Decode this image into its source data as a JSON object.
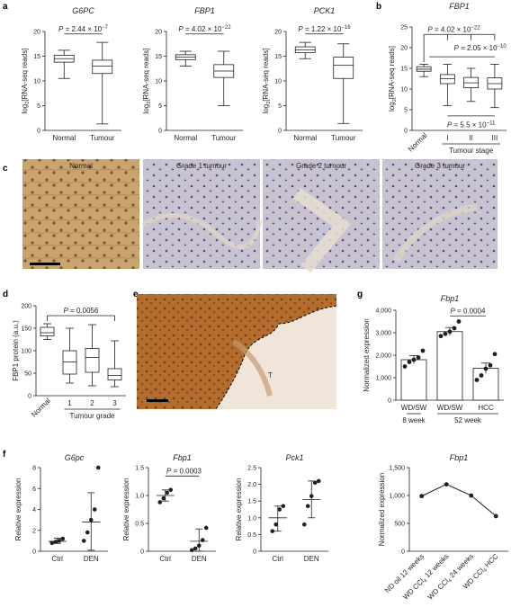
{
  "panel_labels": [
    "a",
    "b",
    "c",
    "d",
    "e",
    "f",
    "g"
  ],
  "panel_c_titles": [
    "Normal",
    "Grade 1 tumour",
    "Grade 2 tumour",
    "Grade 3 tumour"
  ],
  "panel_e_label": "T",
  "chart_data": [
    {
      "id": "a1",
      "type": "box",
      "title": "G6PC",
      "ylabel": "log2[RNA-seq reads]",
      "categories": [
        "Normal",
        "Tumour"
      ],
      "ylim": [
        0,
        20
      ],
      "yticks": [
        0,
        5,
        10,
        15,
        20
      ],
      "boxes": [
        {
          "min": 10.5,
          "q1": 13.8,
          "median": 14.5,
          "q3": 15.2,
          "max": 16.2
        },
        {
          "min": 1.3,
          "q1": 11.5,
          "median": 13.0,
          "q3": 14.2,
          "max": 17.8
        }
      ],
      "annotations": [
        {
          "text": "P = 2.44 × 10^−7"
        }
      ]
    },
    {
      "id": "a2",
      "type": "box",
      "title": "FBP1",
      "ylabel": "log2[RNA-seq reads]",
      "categories": [
        "Normal",
        "Tumour"
      ],
      "ylim": [
        0,
        20
      ],
      "yticks": [
        0,
        5,
        10,
        15,
        20
      ],
      "boxes": [
        {
          "min": 13.0,
          "q1": 14.3,
          "median": 14.8,
          "q3": 15.3,
          "max": 16.0
        },
        {
          "min": 5.0,
          "q1": 10.7,
          "median": 12.0,
          "q3": 13.3,
          "max": 16.0
        }
      ],
      "annotations": [
        {
          "text": "P = 4.02 × 10^−22"
        }
      ]
    },
    {
      "id": "a3",
      "type": "box",
      "title": "PCK1",
      "ylabel": "log2[RNA-seq reads]",
      "categories": [
        "Normal",
        "Tumour"
      ],
      "ylim": [
        0,
        20
      ],
      "yticks": [
        0,
        5,
        10,
        15,
        20
      ],
      "boxes": [
        {
          "min": 14.5,
          "q1": 15.7,
          "median": 16.3,
          "q3": 16.9,
          "max": 17.8
        },
        {
          "min": 1.4,
          "q1": 10.5,
          "median": 13.2,
          "q3": 14.8,
          "max": 17.5
        }
      ],
      "annotations": [
        {
          "text": "P = 1.22 × 10^−16"
        }
      ]
    },
    {
      "id": "b",
      "type": "box",
      "title": "FBP1",
      "ylabel": "log2[RNA-seq reads]",
      "xlabel": "Tumour stage",
      "categories": [
        "Normal",
        "I",
        "II",
        "III"
      ],
      "ylim": [
        0,
        25
      ],
      "yticks": [
        0,
        5,
        10,
        15,
        20,
        25
      ],
      "boxes": [
        {
          "min": 13.0,
          "q1": 14.3,
          "median": 14.8,
          "q3": 15.4,
          "max": 16.0
        },
        {
          "min": 6.0,
          "q1": 11.3,
          "median": 12.5,
          "q3": 13.5,
          "max": 16.0
        },
        {
          "min": 7.0,
          "q1": 10.3,
          "median": 11.5,
          "q3": 12.8,
          "max": 15.0
        },
        {
          "min": 5.5,
          "q1": 10.0,
          "median": 11.3,
          "q3": 12.7,
          "max": 16.0
        }
      ],
      "annotations": [
        {
          "text": "P = 4.02 × 10^−22"
        },
        {
          "text": "P = 2.05 × 10^−10"
        },
        {
          "text": "P = 5.5 × 10^−11"
        }
      ]
    },
    {
      "id": "d",
      "type": "box",
      "ylabel": "FBP1 protein (a.u.)",
      "xlabel": "Tumour grade",
      "categories": [
        "Normal",
        "1",
        "2",
        "3"
      ],
      "ylim": [
        0,
        200
      ],
      "yticks": [
        0,
        50,
        100,
        150,
        200
      ],
      "boxes": [
        {
          "min": 125,
          "q1": 133,
          "median": 140,
          "q3": 152,
          "max": 160
        },
        {
          "min": 28,
          "q1": 48,
          "median": 75,
          "q3": 100,
          "max": 150
        },
        {
          "min": 22,
          "q1": 52,
          "median": 85,
          "q3": 105,
          "max": 158
        },
        {
          "min": 20,
          "q1": 35,
          "median": 45,
          "q3": 60,
          "max": 122
        }
      ],
      "annotations": [
        {
          "text": "P = 0.0056"
        }
      ]
    },
    {
      "id": "g1",
      "type": "bar",
      "title": "Fbp1",
      "ylabel": "Normalized expression",
      "categories": [
        "WD/SW",
        "WD/SW",
        "HCC"
      ],
      "group_labels": [
        "8 week",
        "52 week"
      ],
      "ylim": [
        0,
        4000
      ],
      "yticks": [
        "0",
        "1,000",
        "2,000",
        "3,000",
        "4,000"
      ],
      "values": [
        1800,
        3050,
        1420
      ],
      "errors": [
        180,
        180,
        230
      ],
      "points": [
        [
          1500,
          1700,
          1800,
          1900,
          2200
        ],
        [
          2850,
          2950,
          3050,
          3200,
          3500
        ],
        [
          900,
          1100,
          1400,
          1550,
          2050
        ]
      ],
      "annotations": [
        {
          "text": "P = 0.0004"
        }
      ]
    },
    {
      "id": "f1",
      "type": "scatter",
      "title": "G6pc",
      "ylabel": "Relative expression",
      "categories": [
        "Ctrl",
        "DEN"
      ],
      "ylim": [
        0,
        8
      ],
      "yticks": [
        0,
        2,
        4,
        6,
        8
      ],
      "points": [
        [
          0.8,
          0.9,
          1.0,
          1.2
        ],
        [
          1.0,
          1.8,
          3.0,
          4.0,
          8.0
        ]
      ],
      "means": [
        0.95,
        2.8
      ],
      "sd_low": [
        0.75,
        0.1
      ],
      "sd_high": [
        1.25,
        5.6
      ]
    },
    {
      "id": "f2",
      "type": "scatter",
      "title": "Fbp1",
      "ylabel": "Relative expression",
      "categories": [
        "Ctrl",
        "DEN"
      ],
      "ylim": [
        0,
        1.5
      ],
      "yticks": [
        "0",
        "0.5",
        "1.0",
        "1.5"
      ],
      "points": [
        [
          0.88,
          0.95,
          1.05,
          1.1
        ],
        [
          0.02,
          0.05,
          0.1,
          0.2,
          0.42
        ]
      ],
      "means": [
        1.0,
        0.18
      ],
      "sd_low": [
        0.9,
        0.0
      ],
      "sd_high": [
        1.1,
        0.4
      ],
      "annotations": [
        {
          "text": "P = 0.0003"
        }
      ]
    },
    {
      "id": "f3",
      "type": "scatter",
      "title": "Pck1",
      "ylabel": "Relative expression",
      "categories": [
        "Ctrl",
        "DEN"
      ],
      "ylim": [
        0,
        2.5
      ],
      "yticks": [
        "0",
        "0.5",
        "1.0",
        "1.5",
        "2.0",
        "2.5"
      ],
      "points": [
        [
          0.6,
          0.8,
          1.25,
          1.35
        ],
        [
          0.8,
          1.35,
          1.65,
          2.05,
          2.1
        ]
      ],
      "means": [
        1.0,
        1.55
      ],
      "sd_low": [
        0.6,
        1.0
      ],
      "sd_high": [
        1.35,
        2.1
      ]
    },
    {
      "id": "g2",
      "type": "line",
      "title": "Fbp1",
      "ylabel": "Normalized expression",
      "categories": [
        "ND oil 12 weeks",
        "WD CCl4 12 weeks",
        "WD CCl4 24 weeks",
        "WD CCl4 HCC"
      ],
      "ylim": [
        0,
        1500
      ],
      "yticks": [
        "0",
        "500",
        "1,000",
        "1,500"
      ],
      "values": [
        990,
        1200,
        1000,
        630
      ]
    }
  ]
}
